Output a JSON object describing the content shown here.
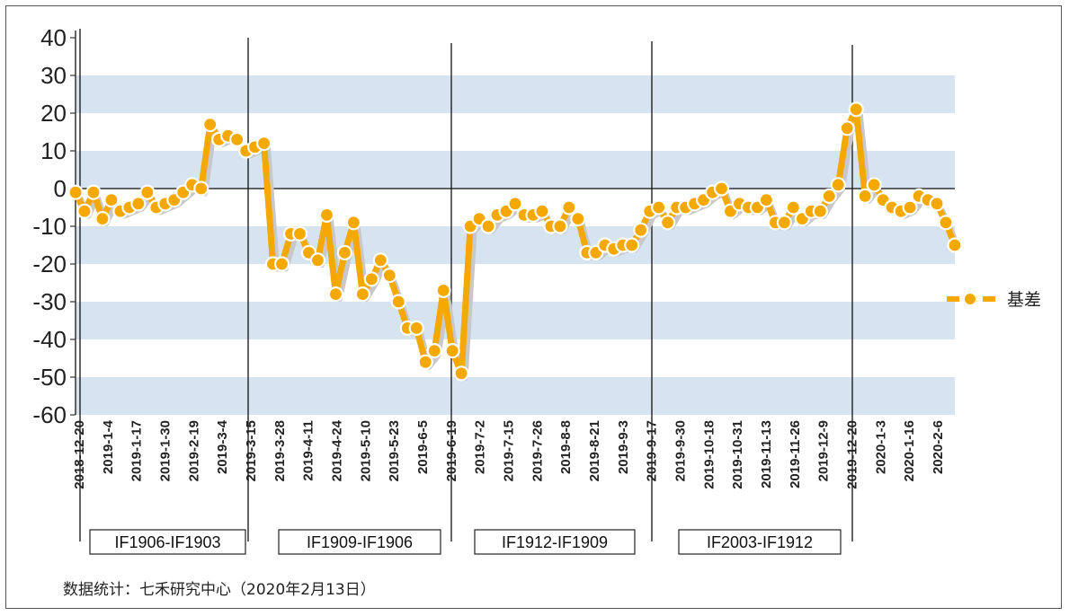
{
  "chart_data": {
    "type": "line",
    "series": [
      {
        "name": "基差",
        "color": "#f5a800",
        "values": [
          -1,
          -6,
          -1,
          -8,
          -3,
          -6,
          -5,
          -4,
          -1,
          -5,
          -4,
          -3,
          -1,
          1,
          0,
          17,
          13,
          14,
          13,
          10,
          11,
          12,
          -20,
          -20,
          -12,
          -12,
          -17,
          -19,
          -7,
          -28,
          -17,
          -9,
          -28,
          -24,
          -19,
          -23,
          -30,
          -37,
          -37,
          -46,
          -43,
          -27,
          -43,
          -49,
          -10,
          -8,
          -10,
          -7,
          -6,
          -4,
          -7,
          -7,
          -6,
          -10,
          -10,
          -5,
          -8,
          -17,
          -17,
          -15,
          -16,
          -15,
          -15,
          -11,
          -6,
          -5,
          -9,
          -5,
          -5,
          -4,
          -3,
          -1,
          0,
          -6,
          -4,
          -5,
          -5,
          -3,
          -9,
          -9,
          -5,
          -8,
          -6,
          -6,
          -2,
          1,
          16,
          21,
          -2,
          1,
          -3,
          -5,
          -6,
          -5,
          -2,
          -3,
          -4,
          -9,
          -15
        ]
      }
    ],
    "x_tick_labels": [
      "2018-12-20",
      "2019-1-4",
      "2019-1-17",
      "2019-1-30",
      "2019-2-19",
      "2019-3-4",
      "2019-3-15",
      "2019-3-28",
      "2019-4-11",
      "2019-4-24",
      "2019-5-10",
      "2019-5-23",
      "2019-6-5",
      "2019-6-19",
      "2019-7-2",
      "2019-7-15",
      "2019-7-26",
      "2019-8-8",
      "2019-8-21",
      "2019-9-3",
      "2019-9-17",
      "2019-9-30",
      "2019-10-18",
      "2019-10-31",
      "2019-11-13",
      "2019-11-26",
      "2019-12-9",
      "2019-12-20",
      "2020-1-3",
      "2020-1-16",
      "2020-2-6"
    ],
    "y_ticks": [
      "40",
      "30",
      "20",
      "10",
      "0",
      "-10",
      "-20",
      "-30",
      "-40",
      "-50",
      "-60"
    ],
    "ylim": [
      -60,
      40
    ],
    "grid": "banded",
    "legend_position": "right",
    "periods": [
      {
        "label": "IF1906-IF1903"
      },
      {
        "label": "IF1909-IF1906"
      },
      {
        "label": "IF1912-IF1909"
      },
      {
        "label": "IF2003-IF1912"
      }
    ]
  },
  "footer_text": "数据统计：七禾研究中心（2020年2月13日）"
}
